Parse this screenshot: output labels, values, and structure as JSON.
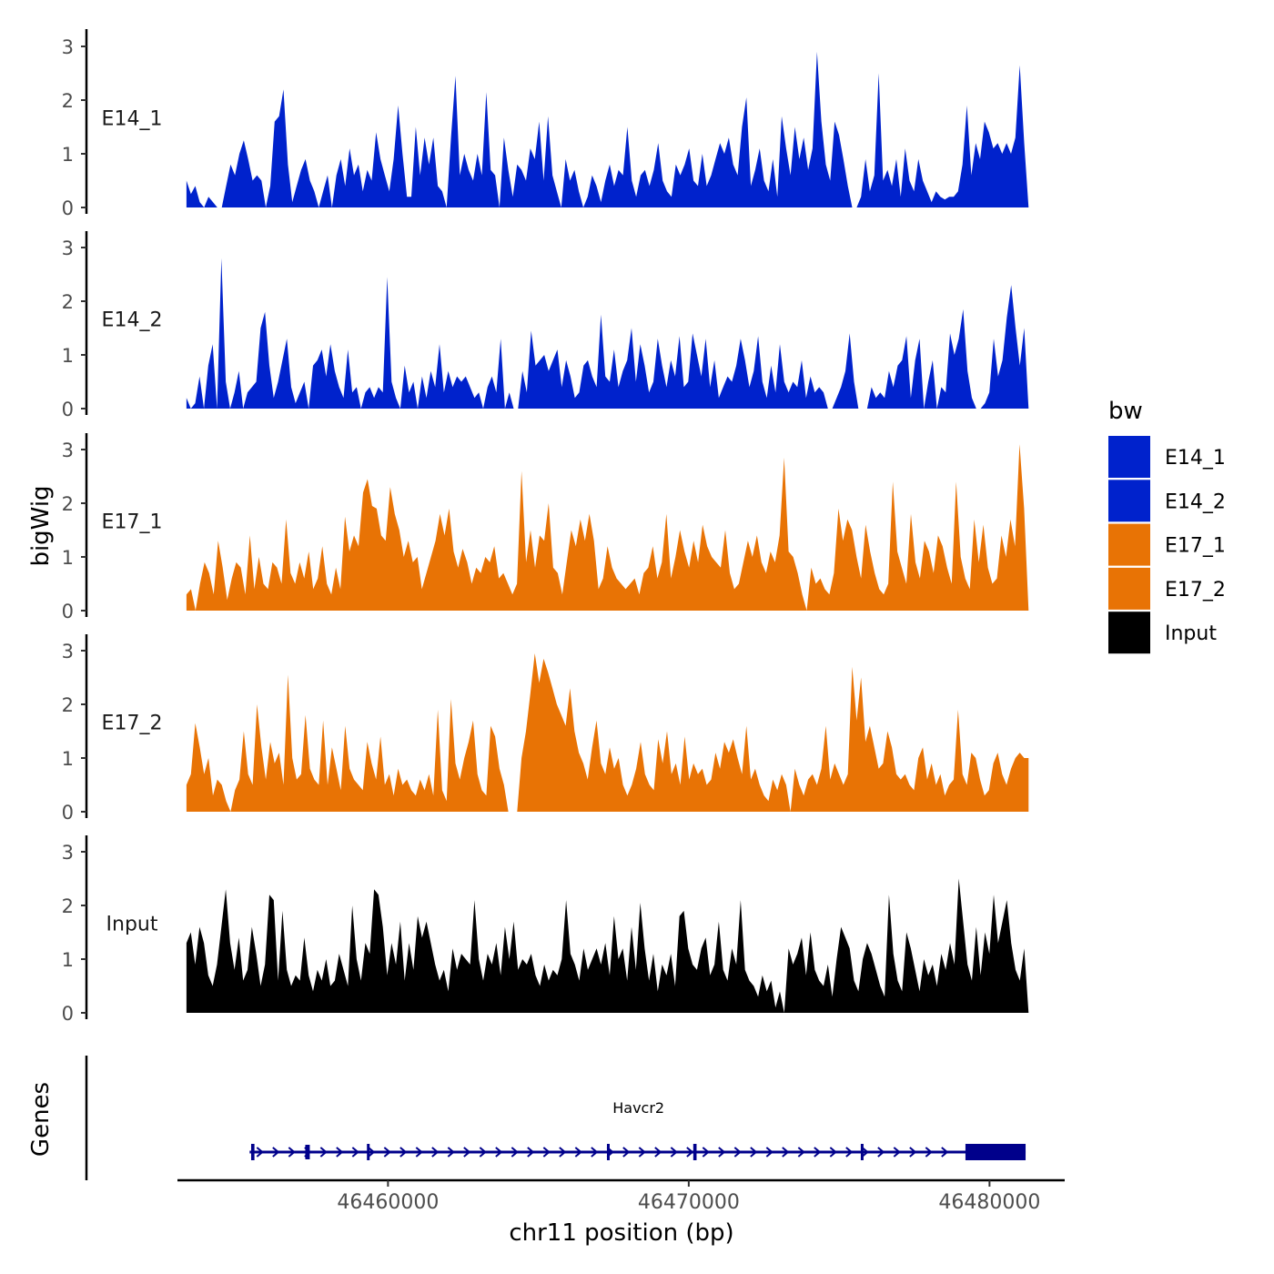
{
  "chart_data": {
    "type": "area",
    "title": "",
    "xlabel": "chr11 position (bp)",
    "ylabel": "bigWig",
    "xlim": [
      46453000,
      46482500
    ],
    "ylim": [
      0,
      3.2
    ],
    "data_range": [
      46453300,
      46481300
    ],
    "x_ticks": [
      46460000,
      46470000,
      46480000
    ],
    "x_tick_labels": [
      "46460000",
      "46470000",
      "46480000"
    ],
    "y_ticks": [
      0,
      1,
      2,
      3
    ],
    "y_tick_labels": [
      "0",
      "1",
      "2",
      "3"
    ],
    "legend": {
      "title": "bw",
      "position": "right",
      "entries": [
        {
          "label": "E14_1",
          "color": "#0022CC"
        },
        {
          "label": "E14_2",
          "color": "#0022CC"
        },
        {
          "label": "E17_1",
          "color": "#E87305"
        },
        {
          "label": "E17_2",
          "color": "#E87305"
        },
        {
          "label": "Input",
          "color": "#000000"
        }
      ]
    },
    "series": [
      {
        "name": "E14_1",
        "color": "#0022CC",
        "values": [
          0.5,
          0.25,
          0.4,
          0.1,
          0.0,
          0.2,
          0.1,
          0.0,
          0.0,
          0.4,
          0.8,
          0.6,
          1.0,
          1.25,
          0.9,
          0.5,
          0.6,
          0.5,
          0.0,
          0.4,
          1.6,
          1.7,
          2.2,
          0.8,
          0.1,
          0.4,
          0.7,
          0.9,
          0.5,
          0.3,
          0.0,
          0.3,
          0.6,
          0.0,
          0.6,
          0.9,
          0.4,
          1.1,
          0.6,
          0.8,
          0.3,
          0.7,
          0.5,
          1.4,
          0.9,
          0.6,
          0.3,
          0.9,
          1.9,
          1.0,
          0.2,
          0.2,
          1.5,
          0.6,
          1.3,
          0.8,
          1.3,
          0.4,
          0.3,
          0.0,
          1.3,
          2.45,
          0.6,
          1.0,
          0.7,
          0.5,
          1.0,
          0.6,
          2.15,
          0.7,
          0.6,
          0.0,
          1.3,
          0.7,
          0.2,
          0.8,
          0.7,
          0.5,
          1.1,
          0.9,
          1.6,
          0.5,
          1.7,
          0.6,
          0.3,
          0.0,
          0.9,
          0.5,
          0.7,
          0.3,
          0.0,
          0.2,
          0.6,
          0.4,
          0.1,
          0.5,
          0.8,
          0.4,
          0.7,
          0.6,
          1.5,
          0.5,
          0.2,
          0.6,
          0.7,
          0.4,
          0.7,
          1.2,
          0.5,
          0.3,
          0.2,
          0.8,
          0.6,
          0.8,
          1.1,
          0.5,
          0.4,
          1.0,
          0.4,
          0.6,
          0.9,
          1.2,
          1.0,
          1.3,
          0.8,
          0.6,
          1.5,
          2.05,
          0.4,
          0.7,
          1.1,
          0.5,
          0.3,
          0.9,
          0.2,
          1.7,
          1.1,
          0.6,
          1.5,
          0.9,
          1.3,
          0.7,
          1.1,
          2.9,
          1.6,
          0.8,
          0.5,
          1.6,
          1.35,
          0.9,
          0.4,
          0.0,
          0.0,
          0.2,
          0.9,
          0.3,
          0.6,
          2.5,
          0.5,
          0.7,
          0.4,
          0.9,
          0.2,
          1.1,
          0.5,
          0.3,
          0.9,
          0.5,
          0.3,
          0.1,
          0.3,
          0.2,
          0.15,
          0.2,
          0.2,
          0.3,
          0.8,
          1.9,
          0.6,
          1.2,
          0.9,
          1.6,
          1.4,
          1.1,
          1.2,
          1.0,
          1.2,
          1.0,
          1.3,
          2.65,
          1.2,
          0.0
        ]
      },
      {
        "name": "E14_2",
        "color": "#0022CC",
        "values": [
          0.2,
          0.0,
          0.1,
          0.6,
          0.0,
          0.8,
          1.2,
          0.0,
          2.8,
          0.5,
          0.0,
          0.3,
          0.7,
          0.0,
          0.3,
          0.4,
          0.5,
          1.5,
          1.8,
          0.8,
          0.2,
          0.5,
          0.9,
          1.3,
          0.4,
          0.1,
          0.3,
          0.5,
          0.0,
          0.8,
          0.9,
          1.1,
          0.6,
          1.2,
          0.7,
          0.4,
          0.2,
          1.1,
          0.3,
          0.4,
          0.0,
          0.3,
          0.4,
          0.2,
          0.4,
          0.3,
          2.45,
          0.5,
          0.2,
          0.0,
          0.8,
          0.3,
          0.5,
          0.0,
          0.6,
          0.2,
          0.7,
          0.4,
          1.2,
          0.3,
          0.7,
          0.4,
          0.6,
          0.5,
          0.6,
          0.4,
          0.2,
          0.3,
          0.0,
          0.4,
          0.6,
          0.3,
          1.3,
          0.0,
          0.3,
          0.0,
          0.0,
          0.7,
          0.3,
          1.45,
          0.8,
          0.9,
          1.0,
          0.7,
          0.9,
          1.1,
          0.4,
          0.9,
          0.6,
          0.2,
          0.3,
          0.8,
          0.9,
          0.6,
          0.4,
          1.75,
          0.6,
          0.5,
          1.1,
          0.4,
          0.7,
          0.9,
          1.5,
          0.5,
          1.2,
          0.8,
          0.3,
          0.5,
          1.3,
          0.8,
          0.4,
          0.9,
          0.6,
          1.35,
          0.4,
          0.5,
          1.4,
          1.0,
          0.6,
          1.3,
          0.4,
          0.9,
          0.2,
          0.4,
          0.6,
          0.5,
          0.8,
          1.3,
          0.9,
          0.4,
          0.7,
          1.35,
          0.5,
          0.2,
          0.8,
          0.3,
          1.2,
          0.5,
          0.3,
          0.5,
          0.4,
          0.9,
          0.2,
          0.6,
          0.3,
          0.4,
          0.3,
          0.0,
          0.0,
          0.2,
          0.4,
          0.7,
          1.4,
          0.5,
          0.0,
          0.0,
          0.0,
          0.4,
          0.2,
          0.3,
          0.2,
          0.7,
          0.4,
          0.8,
          0.9,
          1.35,
          0.2,
          0.9,
          1.3,
          0.0,
          0.5,
          0.9,
          0.0,
          0.4,
          0.3,
          1.4,
          1.0,
          1.3,
          1.85,
          0.7,
          0.2,
          0.0,
          0.0,
          0.1,
          0.3,
          1.3,
          0.6,
          0.9,
          1.7,
          2.3,
          1.5,
          0.8,
          1.5,
          0.0
        ]
      },
      {
        "name": "E17_1",
        "color": "#E87305",
        "values": [
          0.3,
          0.4,
          0.0,
          0.5,
          0.9,
          0.7,
          0.3,
          1.3,
          0.8,
          0.2,
          0.6,
          0.9,
          0.8,
          0.3,
          1.4,
          0.4,
          1.0,
          0.5,
          0.4,
          0.9,
          0.8,
          0.5,
          1.7,
          0.7,
          0.5,
          0.9,
          0.6,
          1.1,
          0.4,
          0.6,
          1.2,
          0.5,
          0.3,
          0.8,
          0.4,
          1.75,
          1.1,
          1.4,
          1.2,
          2.2,
          2.45,
          1.95,
          1.9,
          1.4,
          1.3,
          2.3,
          1.8,
          1.5,
          1.0,
          1.3,
          0.9,
          1.0,
          0.4,
          0.7,
          1.0,
          1.3,
          1.8,
          1.4,
          1.9,
          1.1,
          0.8,
          1.15,
          0.9,
          0.5,
          0.8,
          0.7,
          1.0,
          0.9,
          1.2,
          0.6,
          0.7,
          0.5,
          0.3,
          0.5,
          2.6,
          0.9,
          1.5,
          0.8,
          1.4,
          1.3,
          2.0,
          0.8,
          0.7,
          0.3,
          0.9,
          1.5,
          1.2,
          1.7,
          1.3,
          1.8,
          1.3,
          0.4,
          0.6,
          1.2,
          0.8,
          0.6,
          0.5,
          0.4,
          0.5,
          0.6,
          0.3,
          0.7,
          0.8,
          1.2,
          0.6,
          0.9,
          1.8,
          0.6,
          1.0,
          1.5,
          1.1,
          0.8,
          1.3,
          0.9,
          1.6,
          1.2,
          1.0,
          0.9,
          0.8,
          1.5,
          0.7,
          0.4,
          0.5,
          0.9,
          1.3,
          1.0,
          1.4,
          0.9,
          0.7,
          1.1,
          0.9,
          1.4,
          2.85,
          1.1,
          1.0,
          0.7,
          0.3,
          0.0,
          0.8,
          0.5,
          0.6,
          0.4,
          0.3,
          0.7,
          1.9,
          1.3,
          1.7,
          1.5,
          1.0,
          0.6,
          1.6,
          1.1,
          0.7,
          0.4,
          0.3,
          0.5,
          2.4,
          1.1,
          0.8,
          0.5,
          1.8,
          0.9,
          0.6,
          1.3,
          1.1,
          0.7,
          1.4,
          1.2,
          0.8,
          0.5,
          2.4,
          1.0,
          0.6,
          0.4,
          1.7,
          0.9,
          1.6,
          0.8,
          0.5,
          0.6,
          1.4,
          1.0,
          1.7,
          1.2,
          3.1,
          1.9,
          0.0
        ]
      },
      {
        "name": "E17_2",
        "color": "#E87305",
        "values": [
          0.5,
          0.7,
          1.65,
          1.2,
          0.7,
          1.0,
          0.3,
          0.6,
          0.5,
          0.2,
          0.0,
          0.4,
          0.6,
          1.5,
          0.7,
          0.5,
          2.0,
          1.2,
          0.6,
          1.3,
          0.9,
          1.1,
          0.5,
          2.55,
          1.0,
          0.6,
          0.7,
          1.8,
          0.8,
          0.6,
          0.5,
          1.7,
          0.5,
          1.2,
          0.8,
          0.4,
          1.6,
          0.8,
          0.6,
          0.5,
          0.4,
          1.3,
          0.9,
          0.6,
          1.4,
          0.5,
          0.7,
          0.3,
          0.8,
          0.5,
          0.6,
          0.4,
          0.3,
          0.6,
          0.4,
          0.7,
          0.3,
          1.9,
          0.4,
          0.2,
          2.1,
          0.9,
          0.6,
          1.0,
          1.3,
          1.7,
          0.7,
          0.4,
          0.3,
          1.6,
          1.4,
          0.8,
          0.5,
          0.0,
          0.0,
          0.0,
          1.0,
          1.5,
          2.2,
          2.95,
          2.4,
          2.85,
          2.6,
          2.3,
          2.0,
          1.8,
          1.6,
          2.3,
          1.5,
          1.1,
          0.9,
          0.6,
          1.2,
          1.7,
          0.9,
          0.7,
          1.2,
          0.8,
          1.0,
          0.5,
          0.3,
          0.5,
          0.8,
          1.3,
          0.7,
          0.5,
          0.4,
          1.35,
          0.9,
          1.5,
          0.7,
          0.9,
          0.5,
          1.4,
          0.6,
          0.9,
          0.7,
          0.8,
          0.5,
          0.6,
          1.1,
          0.8,
          1.3,
          1.1,
          1.35,
          1.0,
          0.7,
          1.6,
          0.6,
          0.8,
          0.5,
          0.3,
          0.2,
          0.6,
          0.4,
          0.7,
          0.5,
          0.0,
          0.8,
          0.5,
          0.3,
          0.6,
          0.7,
          0.5,
          0.8,
          1.6,
          0.6,
          0.9,
          0.7,
          0.5,
          0.7,
          2.7,
          1.7,
          2.5,
          1.3,
          1.6,
          1.2,
          0.8,
          0.9,
          1.5,
          1.2,
          0.7,
          0.6,
          0.7,
          0.5,
          0.4,
          1.0,
          1.2,
          0.6,
          0.9,
          0.5,
          0.7,
          0.3,
          0.5,
          0.6,
          1.9,
          0.7,
          0.5,
          1.1,
          1.0,
          0.6,
          0.3,
          0.4,
          0.9,
          1.1,
          0.7,
          0.5,
          0.8,
          1.0,
          1.1,
          1.0,
          1.0
        ]
      },
      {
        "name": "Input",
        "color": "#000000",
        "values": [
          1.3,
          1.5,
          0.9,
          1.6,
          1.3,
          0.7,
          0.5,
          0.9,
          1.6,
          2.3,
          1.3,
          0.8,
          1.4,
          0.6,
          0.8,
          1.6,
          1.1,
          0.5,
          0.9,
          2.2,
          2.1,
          0.6,
          1.9,
          0.8,
          0.5,
          0.7,
          0.6,
          1.4,
          0.7,
          0.4,
          0.8,
          0.6,
          1.0,
          0.5,
          0.6,
          1.1,
          0.8,
          0.5,
          2.0,
          1.0,
          0.6,
          1.3,
          1.1,
          2.3,
          2.2,
          1.6,
          0.7,
          1.3,
          0.9,
          1.7,
          0.6,
          1.3,
          0.8,
          1.8,
          1.4,
          1.7,
          1.3,
          0.9,
          0.6,
          0.8,
          0.4,
          1.2,
          0.8,
          1.1,
          1.0,
          0.9,
          2.1,
          1.0,
          0.6,
          1.1,
          0.9,
          1.3,
          0.7,
          1.6,
          1.0,
          1.7,
          0.8,
          1.0,
          0.9,
          1.1,
          0.7,
          0.5,
          0.9,
          0.6,
          0.8,
          0.7,
          1.0,
          2.1,
          1.1,
          0.9,
          0.6,
          1.2,
          0.8,
          1.0,
          1.2,
          0.9,
          1.3,
          0.7,
          1.8,
          1.0,
          1.2,
          0.6,
          1.6,
          0.8,
          2.05,
          1.2,
          0.6,
          1.1,
          0.4,
          0.9,
          0.7,
          1.1,
          0.5,
          1.8,
          1.9,
          1.2,
          0.9,
          0.8,
          1.2,
          1.4,
          0.7,
          0.9,
          1.7,
          0.8,
          0.6,
          1.2,
          0.9,
          2.1,
          0.8,
          0.6,
          0.5,
          0.3,
          0.7,
          0.4,
          0.6,
          0.1,
          0.4,
          0.0,
          1.2,
          0.9,
          1.1,
          1.4,
          0.7,
          1.5,
          0.8,
          0.6,
          0.5,
          0.9,
          0.3,
          1.0,
          1.6,
          1.4,
          1.2,
          0.6,
          0.4,
          1.0,
          1.3,
          1.1,
          0.8,
          0.5,
          0.3,
          2.2,
          1.1,
          0.6,
          0.4,
          1.5,
          1.2,
          0.8,
          0.4,
          1.0,
          0.7,
          0.9,
          0.5,
          1.1,
          0.8,
          1.3,
          0.9,
          2.5,
          1.7,
          0.9,
          0.6,
          1.6,
          0.7,
          1.5,
          1.1,
          2.2,
          1.3,
          1.7,
          2.1,
          1.3,
          0.8,
          0.6,
          1.2,
          0.0
        ]
      }
    ],
    "genes": {
      "title": "Genes",
      "name": "Havcr2",
      "strand": "+",
      "start": 46455400,
      "end": 46481200,
      "exons": [
        {
          "start": 46455450,
          "end": 46455560,
          "kind": "line"
        },
        {
          "start": 46457250,
          "end": 46457400,
          "kind": "utr"
        },
        {
          "start": 46459300,
          "end": 46459380,
          "kind": "line"
        },
        {
          "start": 46467280,
          "end": 46467330,
          "kind": "line"
        },
        {
          "start": 46470150,
          "end": 46470260,
          "kind": "line"
        },
        {
          "start": 46475720,
          "end": 46475790,
          "kind": "line"
        },
        {
          "start": 46479200,
          "end": 46481200,
          "kind": "coding"
        }
      ]
    }
  }
}
